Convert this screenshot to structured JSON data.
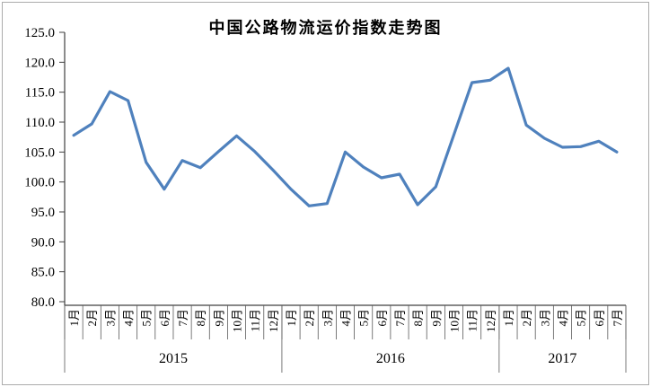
{
  "window": {
    "background_color": "#FFFFFF",
    "border_color": "#ABABAB"
  },
  "chart_data": {
    "type": "line",
    "title": "中国公路物流运价指数走势图",
    "categories": [
      "1月",
      "2月",
      "3月",
      "4月",
      "5月",
      "6月",
      "7月",
      "8月",
      "9月",
      "10月",
      "11月",
      "12月",
      "1月",
      "2月",
      "3月",
      "4月",
      "5月",
      "6月",
      "7月",
      "8月",
      "9月",
      "10月",
      "11月",
      "12月",
      "1月",
      "2月",
      "3月",
      "4月",
      "5月",
      "6月",
      "7月"
    ],
    "year_groups": [
      {
        "label": "2015",
        "count": 12
      },
      {
        "label": "2016",
        "count": 12
      },
      {
        "label": "2017",
        "count": 7
      }
    ],
    "series": [
      {
        "name": "中国公路物流运价指数",
        "values": [
          107.8,
          109.7,
          115.1,
          113.6,
          103.3,
          98.8,
          103.6,
          102.4,
          105.1,
          107.7,
          105.1,
          102.0,
          98.8,
          96.0,
          96.4,
          105.0,
          102.5,
          100.7,
          101.3,
          96.2,
          99.2,
          107.9,
          116.6,
          117.0,
          119.0,
          109.5,
          107.3,
          105.8,
          105.9,
          106.8,
          105.0
        ]
      }
    ],
    "xlabel": "",
    "ylabel": "",
    "ylim": [
      80,
      125
    ],
    "ytick_step": 5,
    "ytick_labels": [
      "125.0",
      "120.0",
      "115.0",
      "110.0",
      "105.0",
      "100.0",
      "95.0",
      "90.0",
      "85.0",
      "80.0"
    ],
    "grid": false,
    "legend_position": "none",
    "line_color": "#4F81BD",
    "axis_color": "#404040",
    "separator_color": "#595959"
  }
}
